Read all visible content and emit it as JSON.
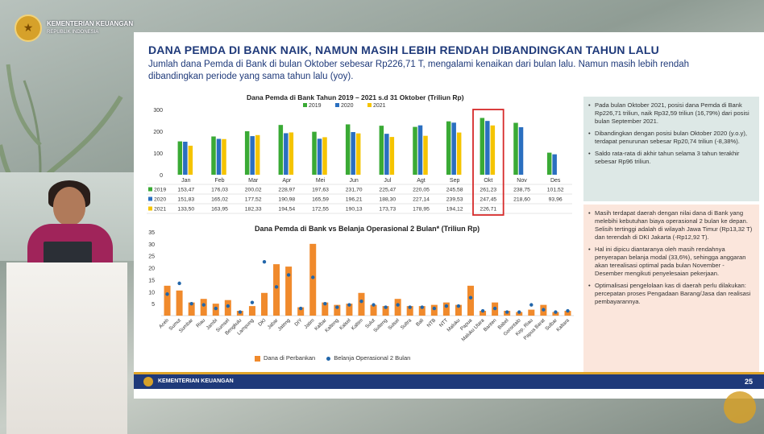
{
  "header": {
    "org_name": "KEMENTERIAN KEUANGAN",
    "org_sub": "REPUBLIK INDONESIA"
  },
  "slide": {
    "title": "DANA PEMDA DI BANK NAIK, NAMUN MASIH LEBIH RENDAH DIBANDINGKAN TAHUN LALU",
    "subtitle": "Jumlah dana Pemda di Bank di bulan Oktober sebesar Rp226,71 T, mengalami kenaikan dari bulan lalu. Namun masih lebih rendah dibandingkan periode yang sama tahun lalu (yoy).",
    "footer": "KEMENTERIAN KEUANGAN",
    "page_number": "25"
  },
  "colors": {
    "y2019": "#3aaa35",
    "y2020": "#2a6fc0",
    "y2021": "#f5c400",
    "bank": "#f08a2c",
    "belanja": "#2266aa",
    "highlight": "#d62a2a"
  },
  "chart_data": [
    {
      "type": "bar",
      "title": "Dana Pemda di Bank Tahun 2019 – 2021 s.d 31 Oktober (Triliun Rp)",
      "categories": [
        "Jan",
        "Feb",
        "Mar",
        "Apr",
        "Mei",
        "Jun",
        "Jul",
        "Agt",
        "Sep",
        "Okt",
        "Nov",
        "Des"
      ],
      "ylim": [
        0,
        300
      ],
      "yticks": [
        "0",
        "100",
        "200",
        "300"
      ],
      "series": [
        {
          "name": "2019",
          "values": [
            153.47,
            176.03,
            200.02,
            228.97,
            197.63,
            231.7,
            225.47,
            220.05,
            245.58,
            261.23,
            238.75,
            101.52
          ],
          "labels": [
            "153,47",
            "176,03",
            "200,02",
            "228,97",
            "197,63",
            "231,70",
            "225,47",
            "220,05",
            "245,58",
            "261,23",
            "238,75",
            "101,52"
          ]
        },
        {
          "name": "2020",
          "values": [
            151.83,
            165.02,
            177.52,
            190.98,
            165.59,
            196.21,
            188.3,
            227.14,
            239.53,
            247.45,
            218.6,
            93.96
          ],
          "labels": [
            "151,83",
            "165,02",
            "177,52",
            "190,98",
            "165,59",
            "196,21",
            "188,30",
            "227,14",
            "239,53",
            "247,45",
            "218,60",
            "93,96"
          ]
        },
        {
          "name": "2021",
          "values": [
            133.5,
            163.95,
            182.33,
            194.54,
            172.55,
            190.13,
            173.73,
            178.95,
            194.12,
            226.71,
            null,
            null
          ],
          "labels": [
            "133,50",
            "163,95",
            "182,33",
            "194,54",
            "172,55",
            "190,13",
            "173,73",
            "178,95",
            "194,12",
            "226,71",
            "",
            ""
          ]
        }
      ],
      "highlighted_category": "Okt",
      "legend": "top"
    },
    {
      "type": "bar",
      "title": "Dana Pemda di Bank vs Belanja Operasional 2 Bulan* (Triliun Rp)",
      "categories": [
        "Aceh",
        "Sumut",
        "Sumbar",
        "Riau",
        "Jambi",
        "Sumsel",
        "Bengkulu",
        "Lampung",
        "DKI",
        "Jabar",
        "Jateng",
        "DIY",
        "Jatim",
        "Kalbar",
        "Kalteng",
        "Kalsel",
        "Kaltim",
        "Sulut",
        "Sulteng",
        "Sulsel",
        "Sultra",
        "Bali",
        "NTB",
        "NTT",
        "Maluku",
        "Papua",
        "Maluku Utara",
        "Banten",
        "Babel",
        "Gorontalo",
        "Kep. Riau",
        "Papua Barat",
        "Sulbar",
        "Kaltara"
      ],
      "ylim": [
        0,
        35
      ],
      "yticks": [
        "5",
        "10",
        "15",
        "20",
        "25",
        "30",
        "35"
      ],
      "series": [
        {
          "name": "Dana di Perbankan",
          "values": [
            12.5,
            10.5,
            5.5,
            7.0,
            5.0,
            6.5,
            2.0,
            4.0,
            9.5,
            21.5,
            20.5,
            3.5,
            30.0,
            5.5,
            4.5,
            5.0,
            9.5,
            4.5,
            4.0,
            7.0,
            4.0,
            4.0,
            4.5,
            5.5,
            4.5,
            12.5,
            2.0,
            5.5,
            2.0,
            1.5,
            2.5,
            4.5,
            1.5,
            2.0
          ]
        },
        {
          "name": "Belanja Operasional 2 Bulan",
          "values": [
            9.0,
            13.5,
            5.0,
            4.5,
            3.0,
            4.0,
            1.5,
            5.5,
            22.5,
            12.0,
            17.0,
            3.0,
            16.0,
            5.0,
            3.5,
            4.5,
            6.0,
            4.5,
            3.5,
            4.5,
            3.5,
            3.5,
            3.0,
            4.0,
            4.0,
            7.5,
            2.0,
            3.0,
            1.5,
            1.5,
            4.5,
            2.5,
            1.5,
            2.0
          ]
        }
      ],
      "legend": "bottom"
    }
  ],
  "notes": {
    "box1": [
      "Pada bulan Oktober 2021, posisi dana Pemda di Bank Rp226,71 triliun, naik Rp32,59 triliun (16,79%) dari posisi bulan September 2021.",
      "Dibandingkan dengan posisi bulan Oktober 2020 (y.o.y), terdapat penurunan sebesar Rp20,74 triliun (-8,38%).",
      "Saldo rata-rata di akhir tahun selama 3 tahun terakhir sebesar Rp96 triliun."
    ],
    "box2": [
      "Masih terdapat daerah dengan nilai dana di Bank yang melebihi kebutuhan biaya operasional 2 bulan ke depan. Selisih tertinggi adalah di wilayah Jawa Timur (Rp13,32 T) dan terendah di DKI Jakarta (-Rp12,92 T).",
      "Hal ini dipicu diantaranya oleh masih rendahnya penyerapan belanja modal (33,6%), sehingga anggaran akan terealisasi optimal pada bulan November - Desember mengikuti penyelesaian pekerjaan.",
      "Optimalisasi pengelolaan kas di daerah perlu dilakukan: percepatan proses Pengadaan Barang/Jasa dan realisasi pembayarannya."
    ]
  }
}
